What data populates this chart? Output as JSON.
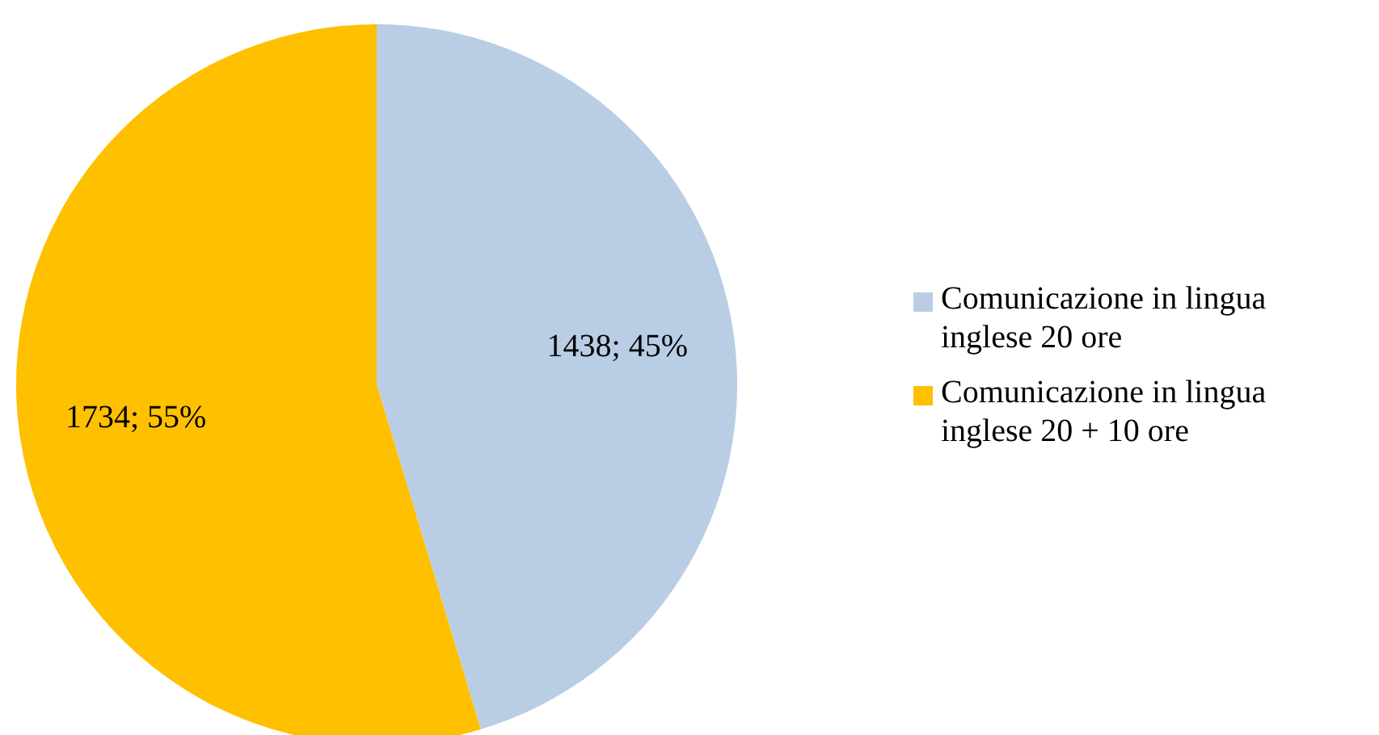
{
  "chart_data": {
    "type": "pie",
    "categories": [
      "Comunicazione in lingua inglese 20 ore",
      "Comunicazione in lingua inglese 20 + 10 ore"
    ],
    "values": [
      1438,
      1734
    ],
    "colors": [
      "#b9cde5",
      "#ffc000"
    ],
    "value_labels": [
      "1438; 45%",
      "1734; 55%"
    ],
    "legend": "right"
  }
}
